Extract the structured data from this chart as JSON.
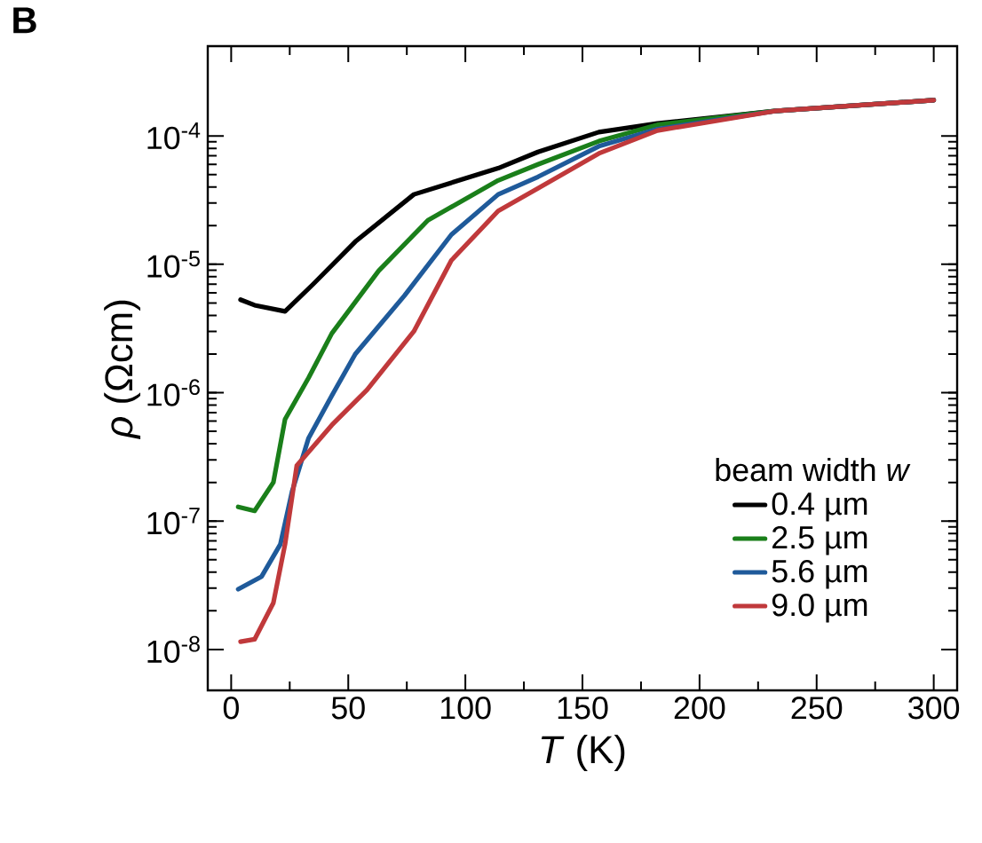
{
  "chart_data": {
    "type": "line",
    "xlabel": "*T* (K)",
    "ylabel": "*ρ* (Ωcm)",
    "legend_title": "beam width *w*",
    "legend": "bottom right",
    "log": "y",
    "line_style": "solid",
    "marker": "none",
    "annotations": [
      "**B**"
    ],
    "xlim": [
      -10,
      310
    ],
    "xticks": [
      0,
      50,
      100,
      150,
      200,
      250,
      300
    ],
    "ylim": [
      4.8e-09,
      0.0005
    ],
    "yticks": [
      {
        "value": 1e-08,
        "label": "10$^{-8}$"
      },
      {
        "value": 1e-07,
        "label": "10$^{-7}$"
      },
      {
        "value": 1e-06,
        "label": "10$^{-6}$"
      },
      {
        "value": 1e-05,
        "label": "10$^{-5}$"
      },
      {
        "value": 0.0001,
        "label": "10$^{-4}$"
      }
    ],
    "series": [
      {
        "name": "0.4 µm",
        "color": "#000000",
        "x": [
          4,
          10,
          23,
          35,
          53,
          78,
          114,
          131,
          157,
          182,
          232,
          300
        ],
        "values": [
          5.3e-06,
          4.8e-06,
          4.3e-06,
          7e-06,
          1.5e-05,
          3.5e-05,
          5.6e-05,
          7.5e-05,
          0.000107,
          0.000125,
          0.000156,
          0.00019
        ]
      },
      {
        "name": "2.5 µm",
        "color": "#1a7f1a",
        "x": [
          3,
          10,
          18,
          23,
          33,
          43,
          63,
          84,
          114,
          131,
          157,
          182,
          232,
          300
        ],
        "values": [
          1.29e-07,
          1.2e-07,
          2e-07,
          6.2e-07,
          1.3e-06,
          2.9e-06,
          8.9e-06,
          2.2e-05,
          4.5e-05,
          6e-05,
          9.1e-05,
          0.000122,
          0.000156,
          0.00019
        ]
      },
      {
        "name": "5.6 µm",
        "color": "#1f5a9a",
        "x": [
          3,
          13,
          21,
          26,
          33,
          43,
          53,
          74,
          94,
          114,
          131,
          157,
          182,
          232,
          300
        ],
        "values": [
          2.95e-08,
          3.7e-08,
          6.6e-08,
          1.7e-07,
          4.4e-07,
          9.5e-07,
          2e-06,
          5.7e-06,
          1.7e-05,
          3.5e-05,
          4.8e-05,
          8.3e-05,
          0.000113,
          0.000156,
          0.00019
        ]
      },
      {
        "name": "9.0 µm",
        "color": "#c0393b",
        "x": [
          4,
          10,
          18,
          23,
          28,
          43,
          58,
          78,
          94,
          114,
          131,
          157,
          182,
          232,
          300
        ],
        "values": [
          1.15e-08,
          1.2e-08,
          2.3e-08,
          6.6e-08,
          2.7e-07,
          5.6e-07,
          1.05e-06,
          3e-06,
          1.07e-05,
          2.6e-05,
          3.9e-05,
          7.3e-05,
          0.00011,
          0.000156,
          0.00019
        ]
      }
    ]
  }
}
